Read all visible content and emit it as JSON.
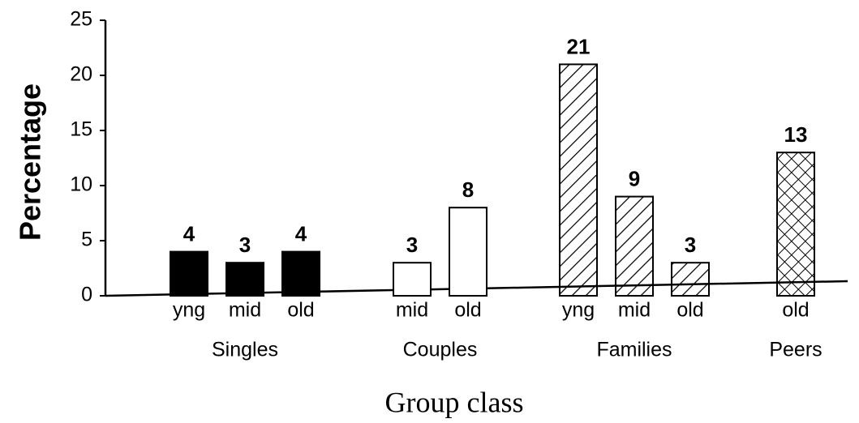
{
  "chart_data": {
    "type": "bar",
    "y_label": "Percentage",
    "x_label": "Group class",
    "ylim": [
      0,
      25
    ],
    "yticks": [
      0,
      5,
      10,
      15,
      20,
      25
    ],
    "series": [
      {
        "name": "Singles",
        "fill": "solid",
        "categories": [
          "yng",
          "mid",
          "old"
        ],
        "values": [
          4,
          3,
          4
        ]
      },
      {
        "name": "Couples",
        "fill": "none",
        "categories": [
          "mid",
          "old"
        ],
        "values": [
          3,
          8
        ]
      },
      {
        "name": "Families",
        "fill": "hatch",
        "categories": [
          "yng",
          "mid",
          "old"
        ],
        "values": [
          21,
          9,
          3
        ]
      },
      {
        "name": "Peers",
        "fill": "crosshatch",
        "categories": [
          "old"
        ],
        "values": [
          13
        ]
      }
    ]
  }
}
